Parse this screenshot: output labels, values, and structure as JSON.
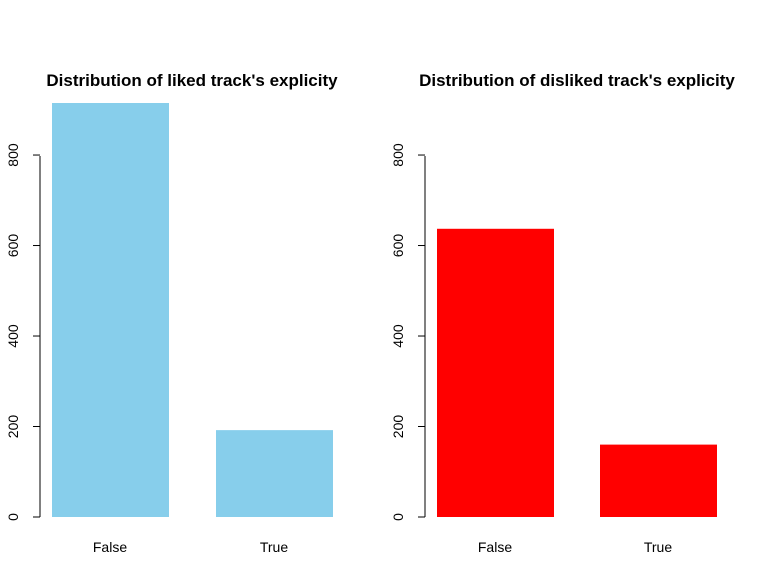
{
  "chart_data": [
    {
      "type": "bar",
      "title": "Distribution of liked track's explicity",
      "xlabel": "",
      "ylabel": "",
      "categories": [
        "False",
        "True"
      ],
      "values": [
        915,
        192
      ],
      "ylim": [
        0,
        915
      ],
      "yticks": [
        "0",
        "200",
        "400",
        "600",
        "800"
      ],
      "color": "#87CEEB",
      "grid": false
    },
    {
      "type": "bar",
      "title": "Distribution of disliked track's explicity",
      "xlabel": "",
      "ylabel": "",
      "categories": [
        "False",
        "True"
      ],
      "values": [
        637,
        160
      ],
      "ylim": [
        0,
        915
      ],
      "yticks": [
        "0",
        "200",
        "400",
        "600",
        "800"
      ],
      "color": "#FF0000",
      "grid": false
    }
  ]
}
